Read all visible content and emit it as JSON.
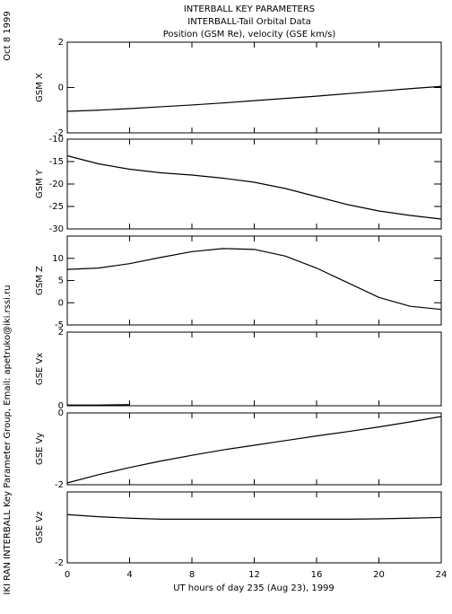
{
  "header": {
    "lines": [
      "INTERBALL KEY PARAMETERS",
      "INTERBALL-Tail Orbital Data",
      "Position (GSM Re), velocity (GSE km/s)"
    ]
  },
  "date": "Oct  8 1999",
  "credit": "IKI RAN INTERBALL Key Parameter Group, Email: apetruko@iki.rssi.ru",
  "x_axis": {
    "label": "UT hours of day 235 (Aug 23), 1999",
    "xlim": [
      0,
      24
    ],
    "xticks": [
      0,
      4,
      8,
      12,
      16,
      20,
      24
    ]
  },
  "chart_data": [
    {
      "type": "line",
      "y_label": "GSM X",
      "ylim": [
        -2,
        2
      ],
      "yticks": [
        -2,
        0,
        2
      ],
      "x": [
        0,
        2,
        4,
        6,
        8,
        10,
        12,
        14,
        16,
        18,
        20,
        22,
        24
      ],
      "values": [
        -1.05,
        -1.0,
        -0.93,
        -0.85,
        -0.77,
        -0.68,
        -0.58,
        -0.48,
        -0.38,
        -0.27,
        -0.16,
        -0.05,
        0.05
      ],
      "color": "#000000"
    },
    {
      "type": "line",
      "y_label": "GSM Y",
      "ylim": [
        -30,
        -10
      ],
      "yticks": [
        -30,
        -25,
        -20,
        -15,
        -10
      ],
      "x": [
        0,
        2,
        4,
        6,
        8,
        10,
        12,
        14,
        16,
        18,
        20,
        22,
        24
      ],
      "values": [
        -13.7,
        -15.5,
        -16.7,
        -17.5,
        -18.0,
        -18.7,
        -19.6,
        -21.0,
        -22.8,
        -24.6,
        -26.0,
        -27.0,
        -27.8
      ],
      "color": "#000000"
    },
    {
      "type": "line",
      "y_label": "GSM Z",
      "ylim": [
        -5,
        15
      ],
      "yticks": [
        -5,
        0,
        5,
        10
      ],
      "x": [
        0,
        2,
        4,
        6,
        8,
        10,
        12,
        14,
        16,
        18,
        20,
        22,
        24
      ],
      "values": [
        7.5,
        7.8,
        8.8,
        10.2,
        11.5,
        12.2,
        12.0,
        10.5,
        7.8,
        4.5,
        1.2,
        -0.8,
        -1.5
      ],
      "color": "#000000"
    },
    {
      "type": "line",
      "y_label": "GSE Vx",
      "ylim": [
        0,
        2
      ],
      "yticks": [
        0,
        2
      ],
      "x": [
        0,
        2,
        4,
        6,
        8,
        10,
        12,
        14,
        16,
        18,
        20,
        22,
        24
      ],
      "values": [
        0.02,
        0.02,
        0.03,
        null,
        null,
        null,
        null,
        null,
        null,
        null,
        null,
        null,
        null
      ],
      "color": "#000000"
    },
    {
      "type": "line",
      "y_label": "GSE Vy",
      "ylim": [
        -2,
        0
      ],
      "yticks": [
        -2,
        0
      ],
      "x": [
        0,
        2,
        4,
        6,
        8,
        10,
        12,
        14,
        16,
        18,
        20,
        22,
        24
      ],
      "values": [
        -1.95,
        -1.72,
        -1.52,
        -1.34,
        -1.18,
        -1.03,
        -0.9,
        -0.77,
        -0.64,
        -0.52,
        -0.39,
        -0.25,
        -0.1
      ],
      "color": "#000000"
    },
    {
      "type": "line",
      "y_label": "GSE Vz",
      "ylim": [
        -2,
        0
      ],
      "yticks": [
        -2
      ],
      "x": [
        0,
        2,
        4,
        6,
        8,
        10,
        12,
        14,
        16,
        18,
        20,
        22,
        24
      ],
      "values": [
        -0.64,
        -0.7,
        -0.74,
        -0.77,
        -0.77,
        -0.77,
        -0.77,
        -0.77,
        -0.77,
        -0.77,
        -0.76,
        -0.74,
        -0.72
      ],
      "color": "#000000"
    }
  ]
}
